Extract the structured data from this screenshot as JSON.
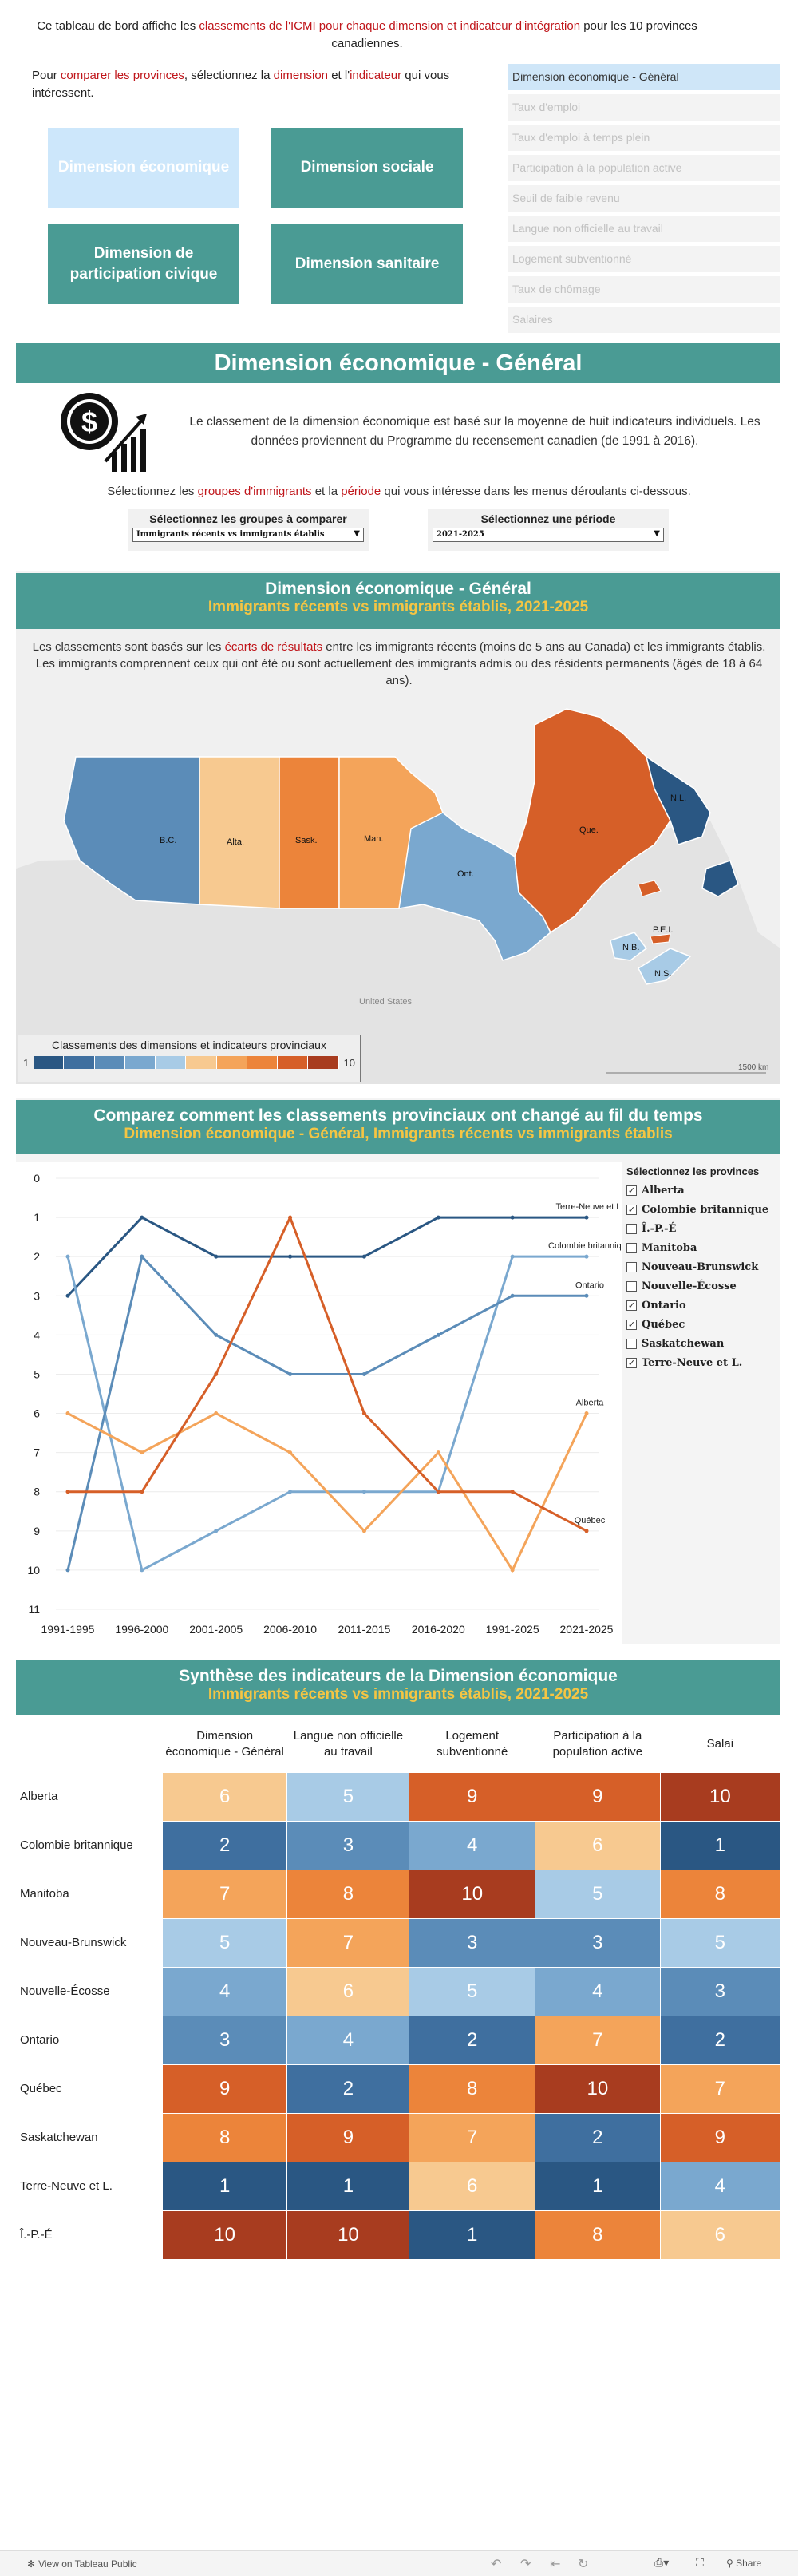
{
  "intro": {
    "line1_pre": "Ce tableau de bord affiche les ",
    "line1_red": "classements de l'ICMI pour chaque dimension et indicateur d'intégration",
    "line1_post": " pour les 10 provinces canadiennes.",
    "line2_pre": "Pour ",
    "line2_red1": "comparer les provinces",
    "line2_mid": ", sélectionnez la ",
    "line2_red2": "dimension",
    "line2_mid2": " et l'",
    "line2_red3": "indicateur",
    "line2_post": " qui vous intéressent."
  },
  "dimensions": {
    "economique": "Dimension économique",
    "sociale": "Dimension sociale",
    "civique": "Dimension de participation civique",
    "sanitaire": "Dimension sanitaire"
  },
  "indicators": [
    "Dimension économique -  Général",
    "Taux d'emploi",
    "Taux d'emploi à temps plein",
    "Participation à la population active",
    "Seuil de faible revenu",
    "Langue non officielle au travail",
    "Logement subventionné",
    "Taux de chômage",
    "Salaires"
  ],
  "header_title": "Dimension économique -  Général",
  "explain": {
    "text": "Le classement de la dimension économique est basé sur la moyenne de huit indicateurs individuels. Les données proviennent du Programme du recensement canadien (de 1991 à 2016).",
    "select_pre": "Sélectionnez les ",
    "select_red1": "groupes d'immigrants",
    "select_mid": " et la ",
    "select_red2": "période",
    "select_post": " qui vous intéresse dans les menus déroulants ci-dessous."
  },
  "filters": {
    "group_label": "Sélectionnez les groupes à comparer",
    "group_value": "Immigrants récents vs immigrants établis",
    "period_label": "Sélectionnez une période",
    "period_value": "2021-2025"
  },
  "map_section": {
    "title": "Dimension économique -  Général",
    "subtitle": "Immigrants récents vs immigrants établis, 2021-2025",
    "note_pre": "Les classements sont basés sur les ",
    "note_red": "écarts de résultats",
    "note_post": " entre les immigrants récents (moins de 5 ans au Canada) et les immigrants établis. Les immigrants comprennent ceux qui ont été ou sont actuellement des immigrants admis ou des résidents permanents (âgés de 18 à 64 ans).",
    "legend_title": "Classements des dimensions et indicateurs provinciaux",
    "legend_min": "1",
    "legend_max": "10",
    "scale_label": "1500 km",
    "us_label": "United States",
    "province_labels": [
      "B.C.",
      "Alta.",
      "Sask.",
      "Man.",
      "Ont.",
      "Que.",
      "N.L.",
      "N.B.",
      "N.S.",
      "P.E.I."
    ],
    "rank_colors": [
      "#2a5783",
      "#3f6f9f",
      "#5b8cb8",
      "#7aa8cf",
      "#a8cbe6",
      "#f7c990",
      "#f4a45a",
      "#ec843a",
      "#d65f28",
      "#a83c1f"
    ]
  },
  "line_section": {
    "title": "Comparez comment les classements provinciaux ont changé au fil du temps",
    "subtitle": "Dimension économique -  Général, Immigrants récents vs immigrants établis",
    "select_title": "Sélectionnez les provinces",
    "provinces": [
      {
        "name": "Alberta",
        "checked": true
      },
      {
        "name": "Colombie  britannique",
        "checked": true
      },
      {
        "name": "Î.-P.-É",
        "checked": false
      },
      {
        "name": "Manitoba",
        "checked": false
      },
      {
        "name": "Nouveau-Brunswick",
        "checked": false
      },
      {
        "name": "Nouvelle-Écosse",
        "checked": false
      },
      {
        "name": "Ontario",
        "checked": true
      },
      {
        "name": "Québec",
        "checked": true
      },
      {
        "name": "Saskatchewan",
        "checked": false
      },
      {
        "name": "Terre-Neuve  et  L.",
        "checked": true
      }
    ]
  },
  "chart_data": {
    "type": "line",
    "title": "Comparez comment les classements provinciaux ont changé au fil du temps",
    "xlabel": "",
    "ylabel": "",
    "categories": [
      "1991-1995",
      "1996-2000",
      "2001-2005",
      "2006-2010",
      "2011-2015",
      "2016-2020",
      "1991-2025",
      "2021-2025"
    ],
    "y_ticks": [
      "0",
      "1",
      "2",
      "3",
      "4",
      "5",
      "6",
      "7",
      "8",
      "9",
      "10",
      "11"
    ],
    "ylim": [
      0,
      11
    ],
    "y_inverted": true,
    "series": [
      {
        "name": "Terre-Neuve et L.",
        "values": [
          3,
          1,
          2,
          2,
          2,
          1,
          1,
          1
        ]
      },
      {
        "name": "Colombie britannique",
        "values": [
          2,
          10,
          9,
          8,
          8,
          8,
          2,
          2
        ]
      },
      {
        "name": "Ontario",
        "values": [
          10,
          2,
          4,
          5,
          5,
          4,
          3,
          3
        ]
      },
      {
        "name": "Alberta",
        "values": [
          6,
          7,
          6,
          7,
          9,
          7,
          10,
          6
        ]
      },
      {
        "name": "Québec",
        "values": [
          8,
          8,
          5,
          1,
          6,
          8,
          8,
          9
        ]
      }
    ]
  },
  "heat_section": {
    "title": "Synthèse des indicateurs de la Dimension économique",
    "subtitle": "Immigrants récents vs immigrants établis, 2021-2025",
    "columns": [
      "Dimension économique -  Général",
      "Langue non officielle au travail",
      "Logement subventionné",
      "Participation à la population active",
      "Salai"
    ],
    "rows": [
      {
        "name": "Alberta",
        "values": [
          6,
          5,
          9,
          9,
          10
        ]
      },
      {
        "name": "Colombie britannique",
        "values": [
          2,
          3,
          4,
          6,
          1
        ]
      },
      {
        "name": "Manitoba",
        "values": [
          7,
          8,
          10,
          5,
          8
        ]
      },
      {
        "name": "Nouveau-Brunswick",
        "values": [
          5,
          7,
          3,
          3,
          5
        ]
      },
      {
        "name": "Nouvelle-Écosse",
        "values": [
          4,
          6,
          5,
          4,
          3
        ]
      },
      {
        "name": "Ontario",
        "values": [
          3,
          4,
          2,
          7,
          2
        ]
      },
      {
        "name": "Québec",
        "values": [
          9,
          2,
          8,
          10,
          7
        ]
      },
      {
        "name": "Saskatchewan",
        "values": [
          8,
          9,
          7,
          2,
          9
        ]
      },
      {
        "name": "Terre-Neuve et L.",
        "values": [
          1,
          1,
          6,
          1,
          4
        ]
      },
      {
        "name": "Î.-P.-É",
        "values": [
          10,
          10,
          1,
          8,
          6
        ]
      }
    ]
  },
  "footer": {
    "link": "View on Tableau Public",
    "share": "Share"
  }
}
